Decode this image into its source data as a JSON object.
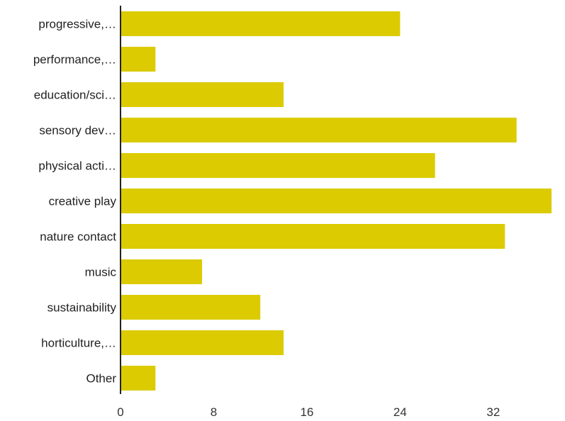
{
  "chart_data": {
    "type": "bar",
    "orientation": "horizontal",
    "categories": [
      "progressive,…",
      "performance,…",
      "education/sci…",
      "sensory dev…",
      "physical acti…",
      "creative play",
      "nature contact",
      "music",
      "sustainability",
      "horticulture,…",
      "Other"
    ],
    "values": [
      24,
      3,
      14,
      34,
      27,
      37,
      33,
      7,
      12,
      14,
      3
    ],
    "xlim": [
      0,
      37
    ],
    "xticks": [
      0,
      8,
      16,
      24,
      32
    ],
    "grid": false,
    "legend": "none",
    "title": "",
    "xlabel": "",
    "ylabel": "",
    "colors": {
      "bar": "#dbcb00",
      "axis": "#222222"
    }
  }
}
